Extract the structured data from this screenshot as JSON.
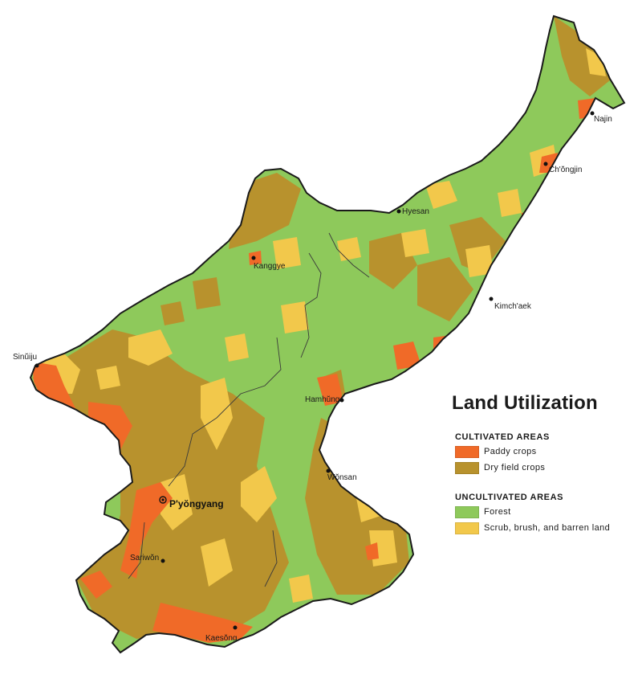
{
  "map": {
    "title": "Land Utilization",
    "colors": {
      "forest": "#8ec95b",
      "dry_field": "#b8922d",
      "paddy": "#f06a28",
      "scrub": "#f2c84b",
      "border": "#1a1a1a",
      "river": "#3a3a3a"
    },
    "legend": {
      "cultivated": {
        "title": "CULTIVATED AREAS",
        "items": [
          {
            "label": "Paddy crops",
            "color": "#f06a28"
          },
          {
            "label": "Dry field crops",
            "color": "#b8922d"
          }
        ]
      },
      "uncultivated": {
        "title": "UNCULTIVATED AREAS",
        "items": [
          {
            "label": "Forest",
            "color": "#8ec95b"
          },
          {
            "label": "Scrub, brush, and barren land",
            "color": "#f2c84b"
          }
        ]
      }
    },
    "cities": [
      {
        "name": "Najin"
      },
      {
        "name": "Ch'ŏngjin"
      },
      {
        "name": "Hyesan"
      },
      {
        "name": "Kanggye"
      },
      {
        "name": "Kimch'aek"
      },
      {
        "name": "Sinŭiju"
      },
      {
        "name": "Hamhŭng"
      },
      {
        "name": "Wŏnsan"
      },
      {
        "name": "P'yŏngyang",
        "capital": true
      },
      {
        "name": "Sariwŏn"
      },
      {
        "name": "Kaesŏng"
      }
    ]
  }
}
